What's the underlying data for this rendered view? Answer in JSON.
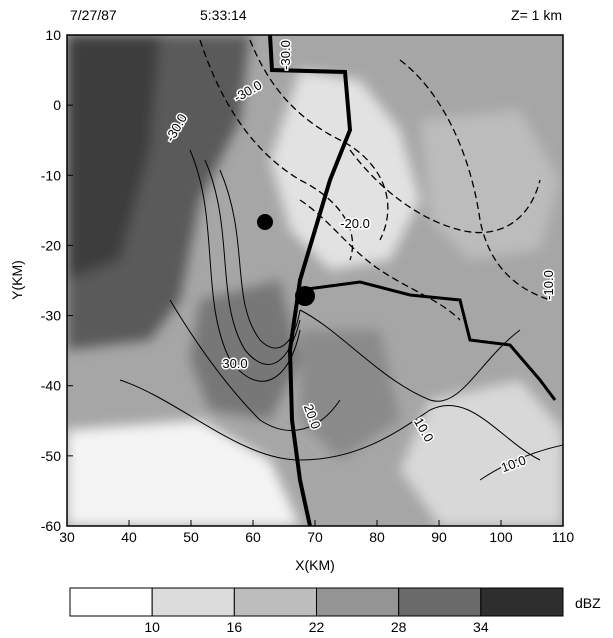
{
  "chart_data": {
    "type": "contour",
    "date": "7/27/87",
    "time": "5:33:14",
    "level": "Z= 1 km",
    "x_label": "X(KM)",
    "y_label": "Y(KM)",
    "xlim": [
      30,
      110
    ],
    "xticks": [
      30,
      40,
      50,
      60,
      70,
      80,
      90,
      100,
      110
    ],
    "ylim": [
      -60,
      10
    ],
    "yticks": [
      -60,
      -50,
      -40,
      -30,
      -20,
      -10,
      0,
      10
    ],
    "grid": false,
    "contour_labels": [
      "-30.0",
      "-30.0",
      "-30.0",
      "-20.0",
      "30.0",
      "20.0",
      "10.0",
      "10.0",
      "-10.0"
    ],
    "colorbar": {
      "label": "dBZ",
      "levels": [
        10,
        16,
        22,
        28,
        34
      ],
      "colors": [
        "#ffffff",
        "#dcdcdc",
        "#bdbdbd",
        "#949494",
        "#6a6a6a",
        "#2e2e2e"
      ]
    }
  }
}
